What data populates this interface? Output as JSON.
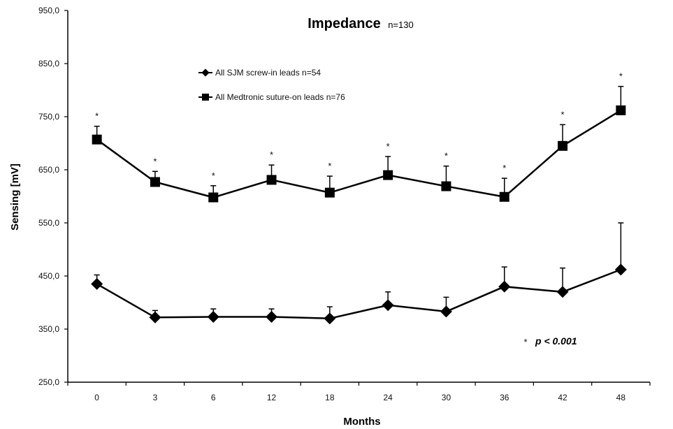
{
  "chart_data": {
    "type": "line",
    "title": "Impedance",
    "title_suffix": "n=130",
    "xlabel": "Months",
    "ylabel": "Sensing [mV]",
    "categories": [
      "0",
      "3",
      "6",
      "12",
      "18",
      "24",
      "30",
      "36",
      "42",
      "48"
    ],
    "ylim": [
      250,
      950
    ],
    "yticks": [
      "250,0",
      "350,0",
      "450,0",
      "550,0",
      "650,0",
      "750,0",
      "850,0",
      "950,0"
    ],
    "ytick_values": [
      250,
      350,
      450,
      550,
      650,
      750,
      850,
      950
    ],
    "grid": false,
    "legend_position": "top-left",
    "series": [
      {
        "name": "All SJM screw-in leads n=54",
        "marker": "diamond",
        "values": [
          435,
          372,
          373,
          373,
          370,
          395,
          383,
          430,
          420,
          462
        ],
        "error_upper": [
          452,
          385,
          388,
          388,
          392,
          420,
          410,
          467,
          465,
          550
        ],
        "significance": []
      },
      {
        "name": "All Medtronic suture-on leads n=76",
        "marker": "square",
        "values": [
          707,
          627,
          598,
          631,
          607,
          640,
          619,
          599,
          695,
          762
        ],
        "error_upper": [
          732,
          647,
          620,
          659,
          638,
          675,
          657,
          634,
          735,
          807
        ],
        "significance": [
          "*",
          "*",
          "*",
          "*",
          "*",
          "*",
          "*",
          "*",
          "*",
          "*"
        ]
      }
    ],
    "annotation": {
      "star": "*",
      "text": "p < 0.001"
    }
  }
}
